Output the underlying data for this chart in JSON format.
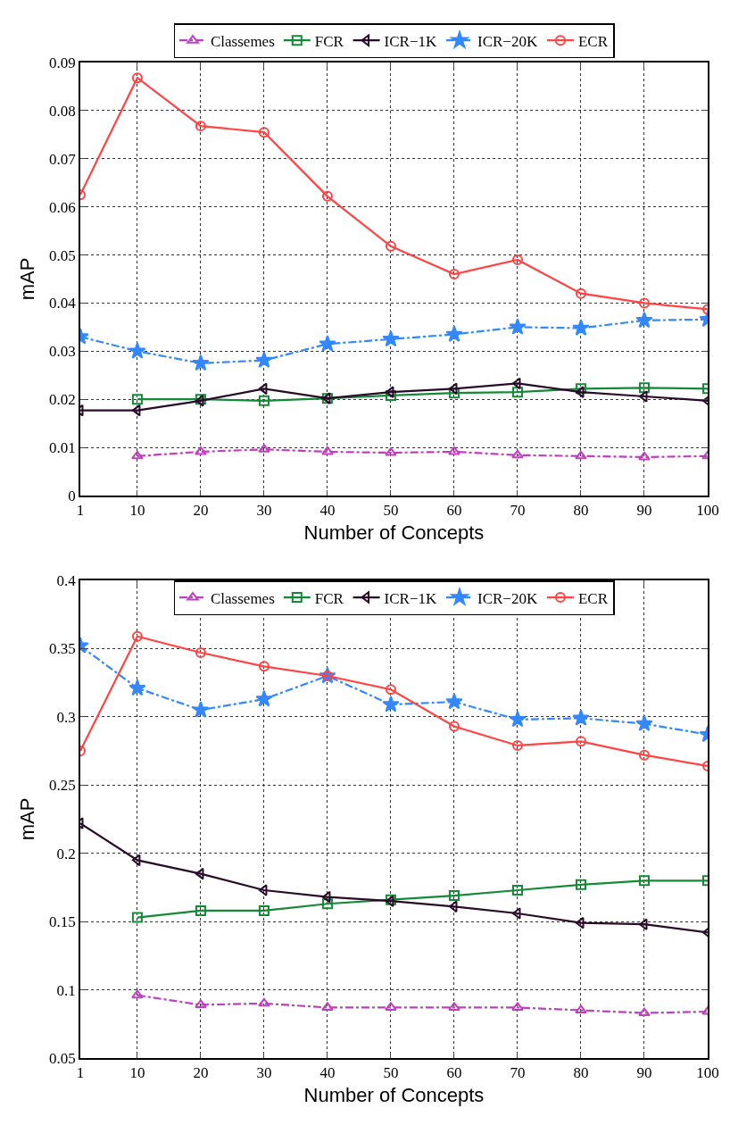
{
  "chart_data": [
    {
      "type": "line",
      "xlabel": "Number of Concepts",
      "ylabel": "mAP",
      "x": [
        1,
        10,
        20,
        30,
        40,
        50,
        60,
        70,
        80,
        90,
        100
      ],
      "xlim": [
        1,
        100
      ],
      "xticks": [
        1,
        10,
        20,
        30,
        40,
        50,
        60,
        70,
        80,
        90,
        100
      ],
      "ylim": [
        0,
        0.09
      ],
      "yticks": [
        0,
        0.01,
        0.02,
        0.03,
        0.04,
        0.05,
        0.06,
        0.07,
        0.08,
        0.09
      ],
      "grid": true,
      "legend": "top",
      "series": [
        {
          "name": "Classemes",
          "color": "#bf3fbf",
          "marker": "triangle",
          "line_style": "dashed",
          "values": [
            null,
            0.0082,
            0.0091,
            0.0096,
            0.0091,
            0.0089,
            0.0091,
            0.0084,
            0.0082,
            0.008,
            0.0082
          ]
        },
        {
          "name": "FCR",
          "color": "#138a36",
          "marker": "square",
          "line_style": "solid",
          "values": [
            null,
            0.02,
            0.02,
            0.0197,
            0.0202,
            0.0208,
            0.0213,
            0.0215,
            0.0222,
            0.0224,
            0.0222
          ]
        },
        {
          "name": "ICR−1K",
          "color": "#2a0a2a",
          "marker": "triangle-left",
          "line_style": "solid",
          "values": [
            0.0177,
            0.0177,
            0.0197,
            0.0222,
            0.0202,
            0.0215,
            0.0222,
            0.0233,
            0.0215,
            0.0206,
            0.0197
          ]
        },
        {
          "name": "ICR−20K",
          "color": "#3388ff",
          "marker": "star",
          "line_style": "dashed",
          "values": [
            0.033,
            0.03,
            0.0275,
            0.0281,
            0.0315,
            0.0325,
            0.0335,
            0.035,
            0.0348,
            0.0364,
            0.0366
          ]
        },
        {
          "name": "ECR",
          "color": "#ff4444",
          "marker": "circle",
          "line_style": "solid",
          "values": [
            0.0625,
            0.0868,
            0.0768,
            0.0755,
            0.0622,
            0.0518,
            0.046,
            0.049,
            0.042,
            0.04,
            0.0387
          ]
        }
      ]
    },
    {
      "type": "line",
      "xlabel": "Number of Concepts",
      "ylabel": "mAP",
      "x": [
        1,
        10,
        20,
        30,
        40,
        50,
        60,
        70,
        80,
        90,
        100
      ],
      "xlim": [
        1,
        100
      ],
      "xticks": [
        1,
        10,
        20,
        30,
        40,
        50,
        60,
        70,
        80,
        90,
        100
      ],
      "ylim": [
        0.05,
        0.4
      ],
      "yticks": [
        0.05,
        0.1,
        0.15,
        0.2,
        0.25,
        0.3,
        0.35,
        0.4
      ],
      "grid": true,
      "legend": "top",
      "series": [
        {
          "name": "Classemes",
          "color": "#bf3fbf",
          "marker": "triangle",
          "line_style": "dashed",
          "values": [
            null,
            0.096,
            0.089,
            0.09,
            0.087,
            0.087,
            0.087,
            0.087,
            0.085,
            0.083,
            0.084
          ]
        },
        {
          "name": "FCR",
          "color": "#138a36",
          "marker": "square",
          "line_style": "solid",
          "values": [
            null,
            0.153,
            0.158,
            0.158,
            0.163,
            0.166,
            0.169,
            0.173,
            0.177,
            0.18,
            0.18
          ]
        },
        {
          "name": "ICR−1K",
          "color": "#2a0a2a",
          "marker": "triangle-left",
          "line_style": "solid",
          "values": [
            0.222,
            0.195,
            0.185,
            0.173,
            0.168,
            0.165,
            0.161,
            0.156,
            0.149,
            0.148,
            0.142
          ]
        },
        {
          "name": "ICR−20K",
          "color": "#3388ff",
          "marker": "star",
          "line_style": "dashed",
          "values": [
            0.352,
            0.321,
            0.305,
            0.313,
            0.33,
            0.309,
            0.311,
            0.298,
            0.299,
            0.295,
            0.287
          ]
        },
        {
          "name": "ECR",
          "color": "#ff4444",
          "marker": "circle",
          "line_style": "solid",
          "values": [
            0.275,
            0.359,
            0.347,
            0.337,
            0.33,
            0.32,
            0.293,
            0.279,
            0.282,
            0.272,
            0.264
          ]
        }
      ]
    }
  ]
}
